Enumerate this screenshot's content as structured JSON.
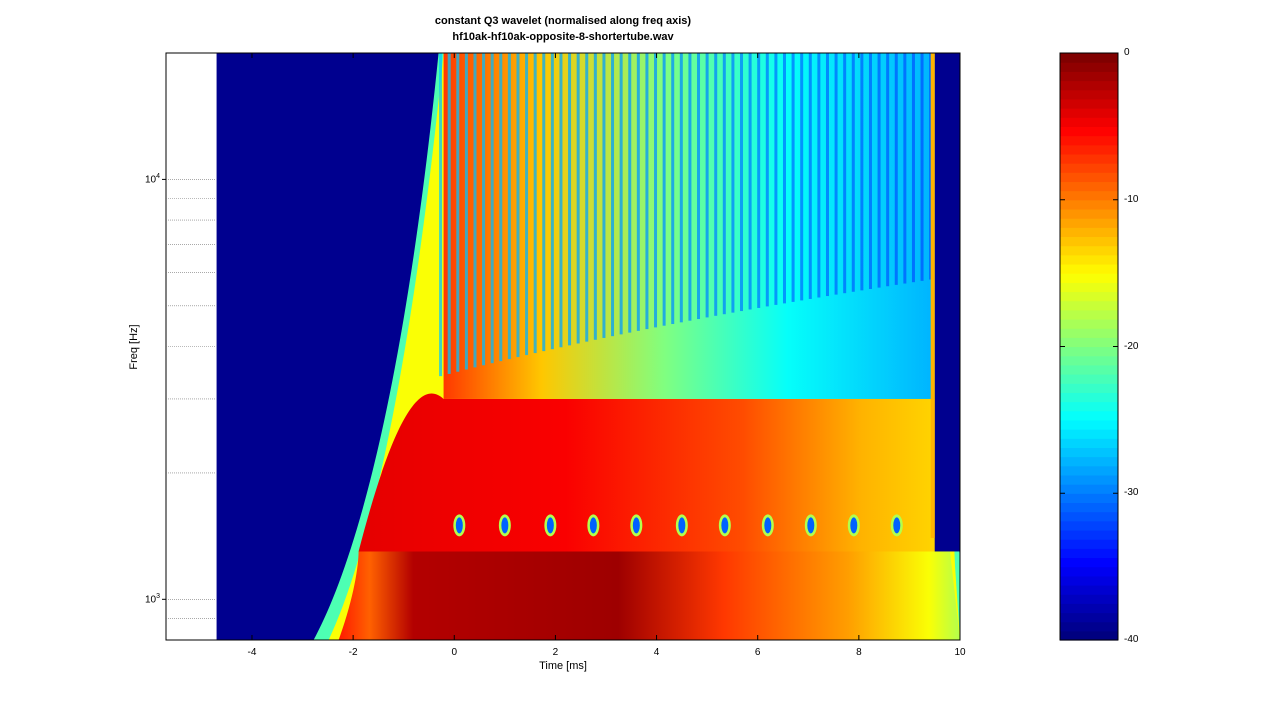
{
  "chart_data": [
    {
      "type": "heatmap",
      "title": "constant Q3 wavelet (normalised along freq axis)",
      "subtitle": "hf10ak-hf10ak-opposite-8-shortertube.wav",
      "xlabel": "Time [ms]",
      "ylabel": "Freq [Hz]",
      "xlim": [
        -5.7,
        10
      ],
      "ylim": [
        800,
        20000
      ],
      "y_scale": "log",
      "x_ticks": [
        -4,
        -2,
        0,
        2,
        4,
        6,
        8,
        10
      ],
      "y_ticks": [
        {
          "value": 1000,
          "base": "10",
          "exp": "3"
        },
        {
          "value": 10000,
          "base": "10",
          "exp": "4"
        }
      ],
      "y_minor_ticks": [
        900,
        2000,
        3000,
        4000,
        5000,
        6000,
        7000,
        8000,
        9000
      ],
      "data_time_range": [
        -4.7,
        10
      ],
      "onset_time_ms": -1.2,
      "decay_end_time_ms": 9.5,
      "resonance_notch_freq_hz": 1500,
      "resonance_notch_times_ms": [
        0.1,
        1.0,
        1.9,
        2.75,
        3.6,
        4.5,
        5.35,
        6.2,
        7.05,
        7.9,
        8.75
      ],
      "colormap": "jet",
      "background_color": "#00008f",
      "grid": false
    },
    {
      "type": "heatmap",
      "title": "",
      "xlabel": "",
      "ylabel": "",
      "colorbar_ylim": [
        -40,
        0
      ],
      "colorbar_ticks": [
        0,
        -10,
        -20,
        -30,
        -40
      ],
      "colormap": "jet",
      "levels": 64
    }
  ]
}
